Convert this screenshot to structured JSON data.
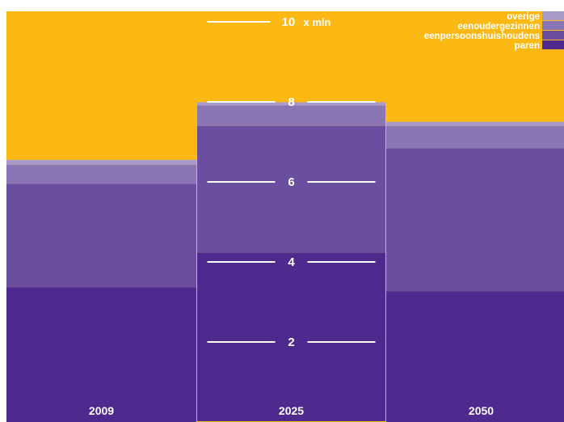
{
  "chart_data": {
    "type": "bar",
    "stacked": true,
    "categories": [
      "2009",
      "2025",
      "2050"
    ],
    "series": [
      {
        "name": "paren",
        "color": "#4e2a8e",
        "values": [
          3.37,
          4.23,
          3.27
        ]
      },
      {
        "name": "eenpersoonshuishoudens",
        "color": "#6a4e9f",
        "values": [
          2.58,
          3.17,
          3.57
        ]
      },
      {
        "name": "eenoudergezinnen",
        "color": "#8b76b5",
        "values": [
          0.48,
          0.51,
          0.56
        ]
      },
      {
        "name": "overige",
        "color": "#a89bc9",
        "values": [
          0.12,
          0.1,
          0.1
        ]
      }
    ],
    "ylim": [
      0,
      10
    ],
    "y_ticks": [
      {
        "value": 2,
        "label": "2"
      },
      {
        "value": 4,
        "label": "4"
      },
      {
        "value": 6,
        "label": "6"
      },
      {
        "value": 8,
        "label": "8"
      },
      {
        "value": 10,
        "label": "10",
        "unit": "x mln"
      }
    ],
    "legend_position": "top-right",
    "legend_order": [
      "overige",
      "eenoudergezinnen",
      "eenpersoonshuishoudens",
      "paren"
    ],
    "colors": {
      "background": "#fdb913",
      "outline": "#fdb913",
      "tick_text": "#ffffff",
      "category_text": "#ffffff"
    },
    "highlighted_category": "2025"
  }
}
